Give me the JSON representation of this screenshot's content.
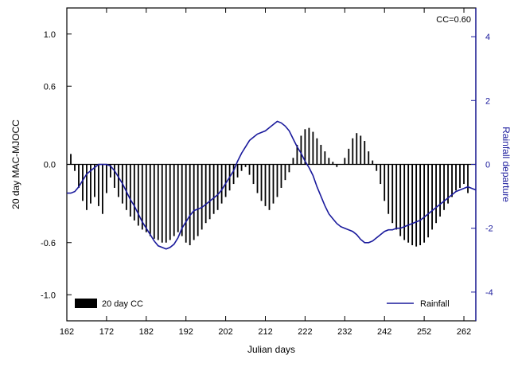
{
  "chart_data": {
    "type": "bar",
    "annotation": "CC=0.60",
    "xlabel": "Julian days",
    "ylabel": "20 day MAC-MJOCC",
    "y2label": "Rainfall departure",
    "xlim": [
      162,
      265
    ],
    "ylim": [
      -1.2,
      1.2
    ],
    "y2lim": [
      -4.9,
      4.9
    ],
    "x_ticks": [
      "162",
      "172",
      "182",
      "192",
      "202",
      "212",
      "222",
      "232",
      "242",
      "252",
      "262"
    ],
    "y_ticks": [
      "1.0",
      "0.6",
      "0.0",
      "-0.6",
      "-1.0"
    ],
    "y_tick_values": [
      1.0,
      0.6,
      0.0,
      -0.6,
      -1.0
    ],
    "y2_ticks": [
      "4",
      "2",
      "0",
      "-2",
      "-4"
    ],
    "y2_tick_values": [
      4,
      2,
      0,
      -2,
      -4
    ],
    "grid": false,
    "legend": [
      {
        "label": "20 day CC",
        "kind": "bar",
        "placement": "bottom-left"
      },
      {
        "label": "Rainfall",
        "kind": "line",
        "placement": "bottom-right"
      }
    ],
    "series": [
      {
        "name": "20 day CC",
        "kind": "bar",
        "axis": "left",
        "color": "#000000",
        "x": [
          163,
          164,
          165,
          166,
          167,
          168,
          169,
          170,
          171,
          172,
          173,
          174,
          175,
          176,
          177,
          178,
          179,
          180,
          181,
          182,
          183,
          184,
          185,
          186,
          187,
          188,
          189,
          190,
          191,
          192,
          193,
          194,
          195,
          196,
          197,
          198,
          199,
          200,
          201,
          202,
          203,
          204,
          205,
          206,
          207,
          208,
          209,
          210,
          211,
          212,
          213,
          214,
          215,
          216,
          217,
          218,
          219,
          220,
          221,
          222,
          223,
          224,
          225,
          226,
          227,
          228,
          229,
          230,
          231,
          232,
          233,
          234,
          235,
          236,
          237,
          238,
          239,
          240,
          241,
          242,
          243,
          244,
          245,
          246,
          247,
          248,
          249,
          250,
          251,
          252,
          253,
          254,
          255,
          256,
          257,
          258,
          259,
          260,
          261,
          262,
          263
        ],
        "values": [
          0.08,
          -0.05,
          -0.18,
          -0.28,
          -0.35,
          -0.3,
          -0.25,
          -0.32,
          -0.38,
          -0.22,
          -0.1,
          -0.18,
          -0.25,
          -0.3,
          -0.35,
          -0.4,
          -0.43,
          -0.47,
          -0.5,
          -0.52,
          -0.55,
          -0.57,
          -0.58,
          -0.6,
          -0.6,
          -0.58,
          -0.55,
          -0.52,
          -0.55,
          -0.6,
          -0.62,
          -0.58,
          -0.55,
          -0.5,
          -0.45,
          -0.42,
          -0.38,
          -0.35,
          -0.3,
          -0.25,
          -0.2,
          -0.15,
          -0.1,
          -0.05,
          -0.02,
          -0.08,
          -0.15,
          -0.22,
          -0.28,
          -0.32,
          -0.35,
          -0.3,
          -0.25,
          -0.18,
          -0.12,
          -0.06,
          0.05,
          0.15,
          0.22,
          0.27,
          0.28,
          0.25,
          0.2,
          0.15,
          0.1,
          0.05,
          0.02,
          -0.02,
          0.0,
          0.05,
          0.12,
          0.2,
          0.24,
          0.22,
          0.18,
          0.1,
          0.03,
          -0.05,
          -0.15,
          -0.28,
          -0.38,
          -0.45,
          -0.5,
          -0.55,
          -0.58,
          -0.6,
          -0.62,
          -0.63,
          -0.62,
          -0.6,
          -0.56,
          -0.5,
          -0.45,
          -0.4,
          -0.35,
          -0.3,
          -0.25,
          -0.2,
          -0.18,
          -0.15,
          -0.22
        ]
      },
      {
        "name": "Rainfall",
        "kind": "line",
        "axis": "right",
        "color": "#1a1a9c",
        "x": [
          162,
          163,
          164,
          165,
          166,
          167,
          168,
          169,
          170,
          171,
          172,
          173,
          174,
          175,
          176,
          177,
          178,
          179,
          180,
          181,
          182,
          183,
          184,
          185,
          186,
          187,
          188,
          189,
          190,
          191,
          192,
          193,
          194,
          195,
          196,
          197,
          198,
          199,
          200,
          201,
          202,
          203,
          204,
          205,
          206,
          207,
          208,
          209,
          210,
          211,
          212,
          213,
          214,
          215,
          216,
          217,
          218,
          219,
          220,
          221,
          222,
          223,
          224,
          225,
          226,
          227,
          228,
          229,
          230,
          231,
          232,
          233,
          234,
          235,
          236,
          237,
          238,
          239,
          240,
          241,
          242,
          243,
          244,
          245,
          246,
          247,
          248,
          249,
          250,
          251,
          252,
          253,
          254,
          255,
          256,
          257,
          258,
          259,
          260,
          261,
          262,
          263,
          264,
          265
        ],
        "values": [
          -0.9,
          -0.9,
          -0.85,
          -0.7,
          -0.5,
          -0.3,
          -0.2,
          -0.1,
          0.0,
          0.0,
          0.0,
          -0.05,
          -0.2,
          -0.4,
          -0.6,
          -0.85,
          -1.1,
          -1.3,
          -1.55,
          -1.8,
          -2.0,
          -2.2,
          -2.4,
          -2.55,
          -2.6,
          -2.65,
          -2.6,
          -2.5,
          -2.3,
          -2.0,
          -1.8,
          -1.6,
          -1.45,
          -1.4,
          -1.35,
          -1.25,
          -1.15,
          -1.05,
          -0.95,
          -0.8,
          -0.6,
          -0.4,
          -0.2,
          0.1,
          0.35,
          0.55,
          0.75,
          0.85,
          0.95,
          1.0,
          1.05,
          1.15,
          1.25,
          1.35,
          1.3,
          1.2,
          1.05,
          0.8,
          0.55,
          0.35,
          0.1,
          -0.1,
          -0.35,
          -0.7,
          -1.0,
          -1.3,
          -1.55,
          -1.7,
          -1.85,
          -1.95,
          -2.0,
          -2.05,
          -2.1,
          -2.2,
          -2.35,
          -2.45,
          -2.45,
          -2.4,
          -2.3,
          -2.2,
          -2.1,
          -2.05,
          -2.05,
          -2.0,
          -2.0,
          -1.95,
          -1.9,
          -1.85,
          -1.8,
          -1.75,
          -1.65,
          -1.55,
          -1.45,
          -1.35,
          -1.25,
          -1.15,
          -1.05,
          -0.95,
          -0.85,
          -0.8,
          -0.75,
          -0.7,
          -0.75,
          -0.8
        ]
      }
    ]
  }
}
